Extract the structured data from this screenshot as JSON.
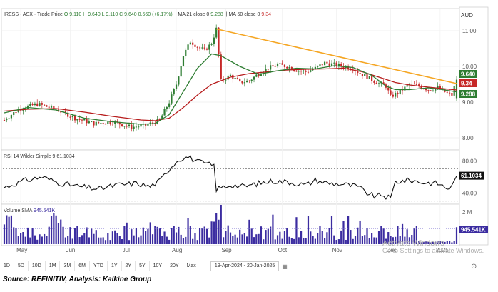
{
  "header": {
    "symbol": "IRESS",
    "exchange": "ASX",
    "chart_type": "Trade Price",
    "ohlc": "O 9.110  H 9.640  L 9.110  C 9.640  0.560 (+6.17%)",
    "ma21": "MA 21 close 0",
    "ma21_value": "9.288",
    "ma50": "MA 50 close 0",
    "ma50_value": "9.34",
    "currency": "AUD"
  },
  "rsi_header": {
    "label": "RSI 14 Wilder Simple 9",
    "value": "61.1034"
  },
  "volume_header": {
    "label": "Volume SMA",
    "value": "945.541K"
  },
  "price_tags": {
    "close": "9.640",
    "ma50": "9.34",
    "ma21": "9.288"
  },
  "rsi_tag": "61.1034",
  "volume_tag": "945.541K",
  "toolbar": {
    "buttons": [
      "1D",
      "5D",
      "10D",
      "1M",
      "3M",
      "6M",
      "YTD",
      "1Y",
      "2Y",
      "5Y",
      "10Y",
      "20Y",
      "Max"
    ],
    "date_range": "19-Apr-2024 - 20-Jan-2025"
  },
  "watermark": {
    "line1": "Activate Windows",
    "line2": "Go to Settings to activate Windows."
  },
  "source": "Source: REFINITIV, Analysis: Kalkine Group",
  "colors": {
    "up": "#2e7d32",
    "down": "#c62828",
    "ma21": "#2e7d32",
    "ma50": "#b71c1c",
    "trend": "#f5a623",
    "rsi": "#111111",
    "volume": "#3b2ca0"
  },
  "chart_data": {
    "type": "candlestick",
    "x_axis": {
      "type": "date",
      "months": [
        "May",
        "Jun",
        "Jul",
        "Aug",
        "Sep",
        "Oct",
        "Nov",
        "Dec",
        "2025"
      ]
    },
    "price_axis": {
      "ticks": [
        8.0,
        9.0,
        10.0,
        11.0
      ],
      "range": [
        7.7,
        11.3
      ]
    },
    "rsi_axis": {
      "ticks": [
        40.0,
        80.0
      ],
      "range": [
        28,
        90
      ],
      "reference_lines": [
        30,
        70
      ]
    },
    "volume_axis": {
      "ticks": [
        "2 M"
      ],
      "range": [
        0,
        2300000
      ]
    },
    "price_path": [
      [
        0,
        8.5
      ],
      [
        6,
        8.8
      ],
      [
        14,
        8.95
      ],
      [
        22,
        8.8
      ],
      [
        30,
        8.55
      ],
      [
        38,
        8.4
      ],
      [
        46,
        8.45
      ],
      [
        54,
        8.3
      ],
      [
        60,
        8.35
      ],
      [
        66,
        8.5
      ],
      [
        70,
        9.0
      ],
      [
        73,
        9.5
      ],
      [
        76,
        10.3
      ],
      [
        79,
        10.7
      ],
      [
        82,
        10.55
      ],
      [
        85,
        10.45
      ],
      [
        88,
        10.65
      ],
      [
        90,
        11.05
      ],
      [
        92,
        9.6
      ],
      [
        96,
        9.75
      ],
      [
        100,
        9.55
      ],
      [
        104,
        9.6
      ],
      [
        108,
        9.8
      ],
      [
        112,
        9.95
      ],
      [
        116,
        10.05
      ],
      [
        120,
        10.0
      ],
      [
        124,
        9.9
      ],
      [
        128,
        9.85
      ],
      [
        132,
        9.95
      ],
      [
        136,
        10.1
      ],
      [
        140,
        10.05
      ],
      [
        144,
        10.0
      ],
      [
        148,
        9.95
      ],
      [
        150,
        9.85
      ],
      [
        154,
        9.7
      ],
      [
        158,
        9.55
      ],
      [
        162,
        9.45
      ],
      [
        164,
        9.15
      ],
      [
        168,
        9.3
      ],
      [
        172,
        9.5
      ],
      [
        176,
        9.45
      ],
      [
        180,
        9.35
      ],
      [
        184,
        9.4
      ],
      [
        188,
        9.25
      ],
      [
        190,
        9.2
      ],
      [
        192,
        9.64
      ]
    ],
    "ma21_path": [
      [
        0,
        8.7
      ],
      [
        10,
        8.85
      ],
      [
        22,
        8.78
      ],
      [
        34,
        8.55
      ],
      [
        46,
        8.45
      ],
      [
        58,
        8.38
      ],
      [
        64,
        8.4
      ],
      [
        70,
        8.65
      ],
      [
        76,
        9.3
      ],
      [
        82,
        9.95
      ],
      [
        88,
        10.35
      ],
      [
        92,
        10.3
      ],
      [
        100,
        10.0
      ],
      [
        108,
        9.78
      ],
      [
        116,
        9.88
      ],
      [
        124,
        9.95
      ],
      [
        132,
        9.93
      ],
      [
        140,
        10.02
      ],
      [
        148,
        9.97
      ],
      [
        156,
        9.75
      ],
      [
        162,
        9.45
      ],
      [
        166,
        9.35
      ],
      [
        172,
        9.35
      ],
      [
        180,
        9.4
      ],
      [
        186,
        9.35
      ],
      [
        192,
        9.288
      ]
    ],
    "ma50_path": [
      [
        0,
        8.75
      ],
      [
        10,
        8.8
      ],
      [
        22,
        8.82
      ],
      [
        34,
        8.72
      ],
      [
        46,
        8.6
      ],
      [
        58,
        8.5
      ],
      [
        64,
        8.48
      ],
      [
        70,
        8.55
      ],
      [
        76,
        8.85
      ],
      [
        82,
        9.2
      ],
      [
        88,
        9.5
      ],
      [
        96,
        9.7
      ],
      [
        104,
        9.8
      ],
      [
        112,
        9.85
      ],
      [
        120,
        9.9
      ],
      [
        128,
        9.92
      ],
      [
        136,
        9.93
      ],
      [
        144,
        9.95
      ],
      [
        152,
        9.85
      ],
      [
        160,
        9.68
      ],
      [
        166,
        9.55
      ],
      [
        172,
        9.48
      ],
      [
        180,
        9.42
      ],
      [
        186,
        9.38
      ],
      [
        192,
        9.34
      ]
    ],
    "trendline": {
      "from": [
        90,
        11.05
      ],
      "to": [
        192,
        9.52
      ]
    },
    "rsi_path": [
      [
        0,
        47
      ],
      [
        8,
        55
      ],
      [
        16,
        60
      ],
      [
        24,
        52
      ],
      [
        32,
        48
      ],
      [
        40,
        45
      ],
      [
        48,
        50
      ],
      [
        56,
        52
      ],
      [
        62,
        48
      ],
      [
        66,
        55
      ],
      [
        70,
        70
      ],
      [
        74,
        82
      ],
      [
        78,
        85
      ],
      [
        82,
        79
      ],
      [
        86,
        76
      ],
      [
        89,
        74
      ],
      [
        90,
        45
      ],
      [
        96,
        50
      ],
      [
        102,
        48
      ],
      [
        108,
        52
      ],
      [
        114,
        55
      ],
      [
        120,
        54
      ],
      [
        128,
        50
      ],
      [
        132,
        56
      ],
      [
        138,
        52
      ],
      [
        144,
        51
      ],
      [
        150,
        48
      ],
      [
        154,
        40
      ],
      [
        158,
        35
      ],
      [
        160,
        38
      ],
      [
        164,
        33
      ],
      [
        166,
        54
      ],
      [
        172,
        56
      ],
      [
        178,
        53
      ],
      [
        184,
        52
      ],
      [
        188,
        46
      ],
      [
        190,
        48
      ],
      [
        192,
        61.1
      ]
    ],
    "volume_sma": 945541
  }
}
